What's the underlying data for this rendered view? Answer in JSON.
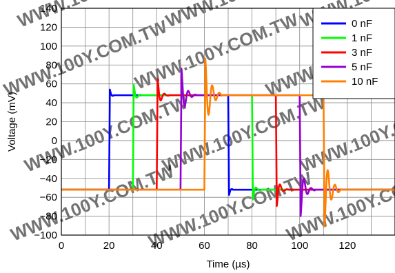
{
  "chart_data": {
    "type": "line",
    "xlabel": "Time (µs)",
    "ylabel": "Voltage (mV)",
    "xlim": [
      0,
      140
    ],
    "ylim": [
      -100,
      140
    ],
    "x_ticks": [
      0,
      20,
      40,
      60,
      80,
      100,
      120
    ],
    "x_tick_labels": [
      "0",
      "20",
      "40",
      "60",
      "80",
      "100",
      "120"
    ],
    "y_ticks": [
      140,
      120,
      100,
      80,
      60,
      40,
      20,
      0,
      -20,
      -40,
      -60,
      -80,
      -100
    ],
    "y_tick_labels": [
      "140",
      "120",
      "100",
      "80",
      "60",
      "40",
      "20",
      "0",
      "−20",
      "−40",
      "−60",
      "−80",
      "−100"
    ],
    "grid": true,
    "legend_position": "top-right",
    "watermark": "WWW.100Y.COM.TW",
    "low_level": -52,
    "high_level": 48,
    "series": [
      {
        "name": "0 nF",
        "color": "#0000ff",
        "rise_time": 20,
        "fall_time": 70,
        "overshoot": 6,
        "ring_periods": 0.5,
        "decay": 0.6
      },
      {
        "name": "1 nF",
        "color": "#00ff00",
        "rise_time": 30,
        "fall_time": 80,
        "overshoot": 11,
        "ring_periods": 1.5,
        "decay": 0.9
      },
      {
        "name": "3 nF",
        "color": "#ff0000",
        "rise_time": 40,
        "fall_time": 90,
        "overshoot": 18,
        "ring_periods": 1.8,
        "decay": 1.2
      },
      {
        "name": "5 nF",
        "color": "#9400d3",
        "rise_time": 50,
        "fall_time": 100,
        "overshoot": 29,
        "ring_periods": 2.0,
        "decay": 1.6
      },
      {
        "name": "10 nF",
        "color": "#ff8000",
        "rise_time": 60,
        "fall_time": 110,
        "overshoot": 40,
        "ring_periods": 2.3,
        "decay": 2.2
      }
    ]
  }
}
